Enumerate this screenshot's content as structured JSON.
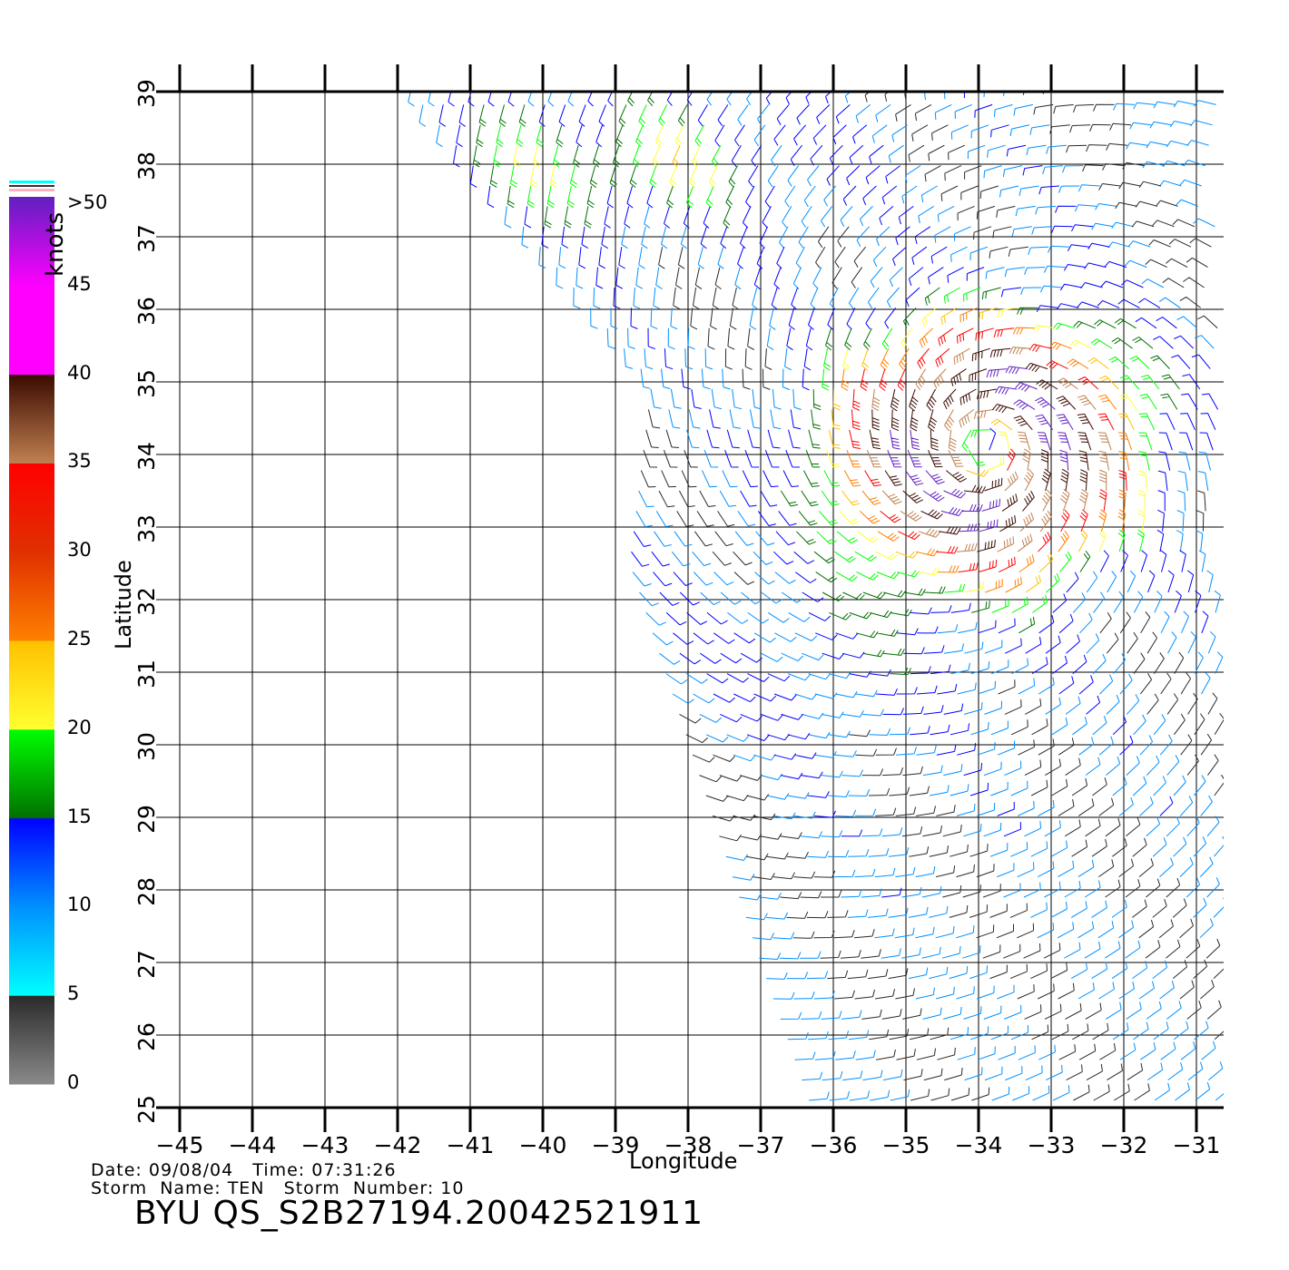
{
  "map": {
    "lon_min": -45,
    "lon_max": -31,
    "lat_min": 25,
    "lat_max": 39,
    "lon_ticks": [
      -45,
      -44,
      -43,
      -42,
      -41,
      -40,
      -39,
      -38,
      -37,
      -36,
      -35,
      -34,
      -33,
      -32,
      -31
    ],
    "lat_ticks": [
      25,
      26,
      27,
      28,
      29,
      30,
      31,
      32,
      33,
      34,
      35,
      36,
      37,
      38,
      39
    ],
    "lon_tick_labels": [
      "−45",
      "−44",
      "−43",
      "−42",
      "−41",
      "−40",
      "−39",
      "−38",
      "−37",
      "−36",
      "−35",
      "−34",
      "−33",
      "−32",
      "−31"
    ],
    "lat_tick_labels": [
      "25",
      "26",
      "27",
      "28",
      "29",
      "30",
      "31",
      "32",
      "33",
      "34",
      "35",
      "36",
      "37",
      "38",
      "39"
    ],
    "xlabel": "Longitude",
    "ylabel": "Latitude",
    "storm_center": {
      "lon": -33.9,
      "lat": 34.1
    },
    "swath_west_edge": [
      [
        -41.8,
        39
      ],
      [
        -38.5,
        35
      ],
      [
        -38.8,
        32.5
      ],
      [
        -37,
        27
      ],
      [
        -36.3,
        25
      ]
    ],
    "swath_east_edge": [
      -30.7,
      25,
      39
    ]
  },
  "legend": {
    "unit": "knots",
    "labels": [
      "0",
      "5",
      "10",
      "15",
      "20",
      "25",
      "30",
      "35",
      "40",
      "45",
      ">50"
    ],
    "colors": {
      "gray_dark": "#2a2a2a",
      "gray_light": "#8a8a8a",
      "cyan": "#00ffff",
      "blue_light": "#0090ff",
      "blue": "#0000ff",
      "green_dark": "#007000",
      "green": "#00ff00",
      "yellow": "#ffff30",
      "yellow_orange": "#ffc000",
      "orange": "#ff8000",
      "orange_red": "#e03000",
      "red": "#ff0000",
      "tan": "#c08050",
      "brown_dark": "#3a0a00",
      "magenta": "#ff00ff",
      "purple": "#6020c0"
    }
  },
  "info": {
    "line1": "Date: 09/08/04   Time: 07:31:26",
    "line2": "Storm  Name: TEN   Storm  Number: 10",
    "title": "BYU  QS_S2B27194.20042521911"
  }
}
